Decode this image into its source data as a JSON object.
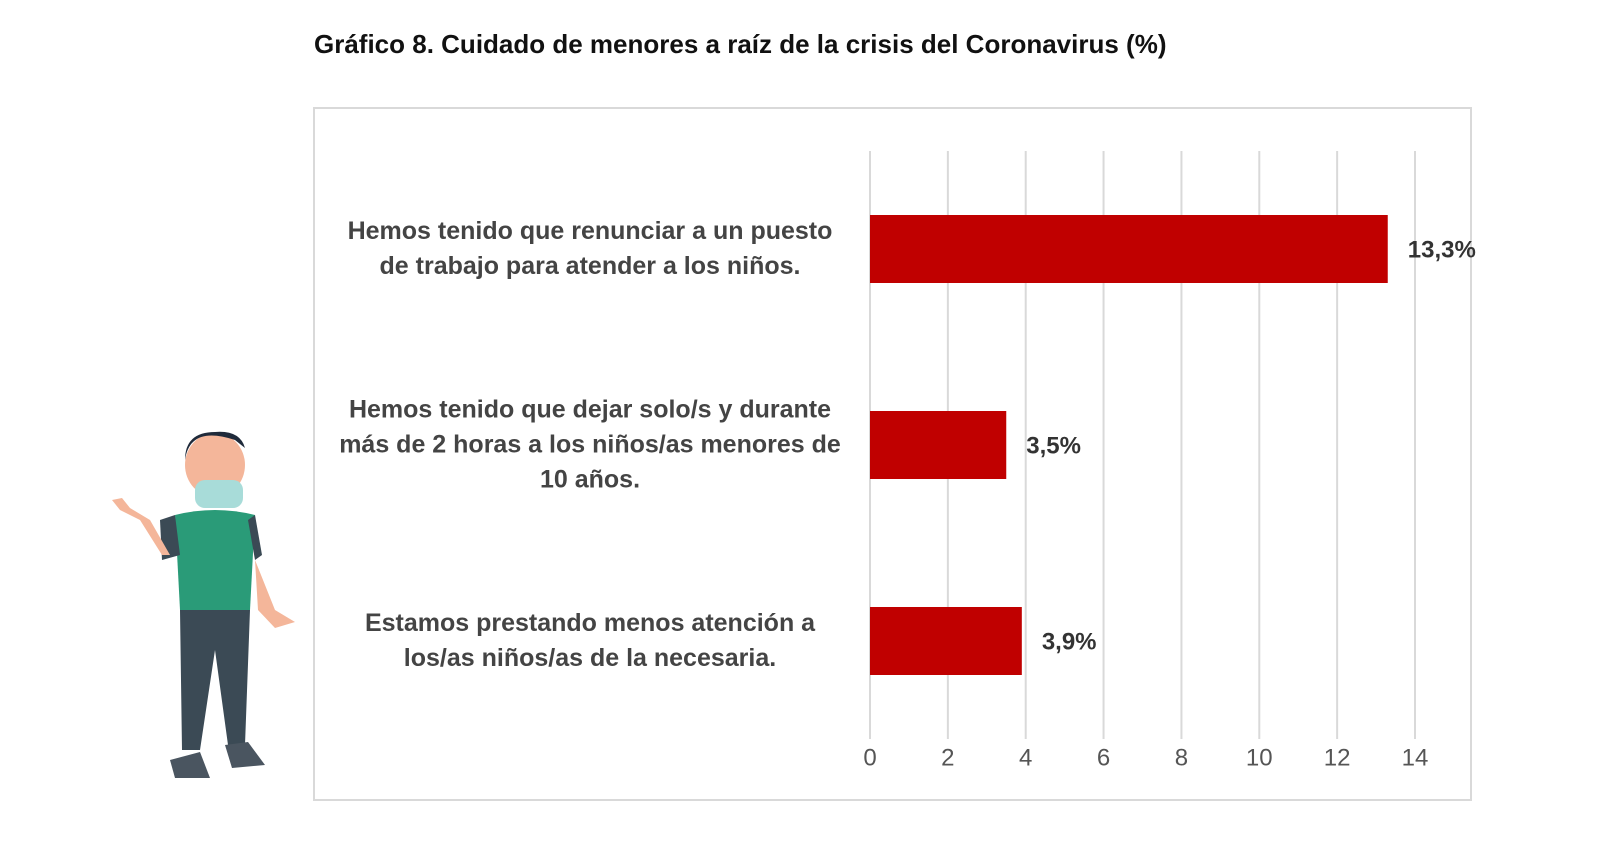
{
  "chart_data": {
    "type": "barh",
    "title": "Gráfico 8. Cuidado de menores a raíz de la crisis del Coronavirus (%)",
    "categories": [
      "Hemos tenido que renunciar a un puesto de trabajo para atender a los niños.",
      "Hemos tenido que dejar solo/s y durante más de 2 horas a los niños/as menores de 10 años.",
      "Estamos prestando menos atención a los/as niños/as de la necesaria."
    ],
    "values": [
      13.3,
      3.5,
      3.9
    ],
    "value_labels": [
      "13,3%",
      "3,5%",
      "3,9%"
    ],
    "color": "#c00000",
    "xlim": [
      0,
      14
    ],
    "xticks": [
      0,
      2,
      4,
      6,
      8,
      10,
      12,
      14
    ],
    "grid": true
  }
}
